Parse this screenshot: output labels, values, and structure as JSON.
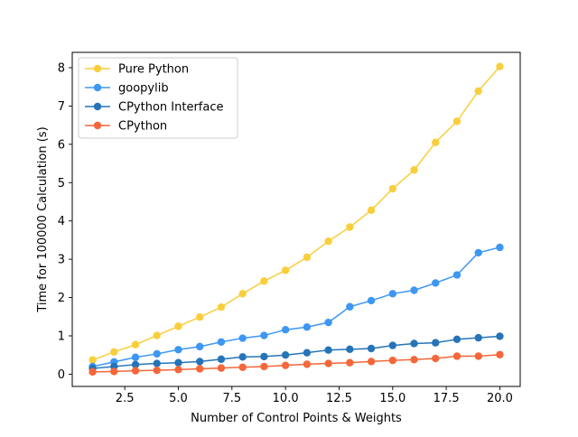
{
  "chart_data": {
    "type": "line",
    "title": "",
    "xlabel": "Number of Control Points & Weights",
    "ylabel": "Time for 100000 Calculation (s)",
    "xlim": [
      0.05,
      20.95
    ],
    "ylim": [
      -0.32,
      8.4
    ],
    "xticks": [
      2.5,
      5.0,
      7.5,
      10.0,
      12.5,
      15.0,
      17.5,
      20.0
    ],
    "xtick_labels": [
      "2.5",
      "5.0",
      "7.5",
      "10.0",
      "12.5",
      "15.0",
      "17.5",
      "20.0"
    ],
    "yticks": [
      0,
      1,
      2,
      3,
      4,
      5,
      6,
      7,
      8
    ],
    "ytick_labels": [
      "0",
      "1",
      "2",
      "3",
      "4",
      "5",
      "6",
      "7",
      "8"
    ],
    "grid": false,
    "legend_position": "upper-left",
    "x": [
      1,
      2,
      3,
      4,
      5,
      6,
      7,
      8,
      9,
      10,
      11,
      12,
      13,
      14,
      15,
      16,
      17,
      18,
      19,
      20
    ],
    "series": [
      {
        "name": "Pure Python",
        "color": "#F9CE3D",
        "values": [
          0.37,
          0.58,
          0.77,
          1.01,
          1.25,
          1.49,
          1.75,
          2.1,
          2.43,
          2.71,
          3.05,
          3.47,
          3.84,
          4.28,
          4.84,
          5.33,
          6.05,
          6.6,
          7.39,
          8.03
        ]
      },
      {
        "name": "goopylib",
        "color": "#3D97F3",
        "values": [
          0.2,
          0.32,
          0.44,
          0.53,
          0.64,
          0.72,
          0.84,
          0.94,
          1.01,
          1.16,
          1.23,
          1.35,
          1.76,
          1.92,
          2.1,
          2.19,
          2.38,
          2.59,
          3.17,
          3.31
        ]
      },
      {
        "name": "CPython Interface",
        "color": "#2574B8",
        "values": [
          0.15,
          0.2,
          0.25,
          0.28,
          0.3,
          0.33,
          0.39,
          0.45,
          0.46,
          0.5,
          0.56,
          0.63,
          0.65,
          0.67,
          0.75,
          0.8,
          0.82,
          0.91,
          0.95,
          0.99
        ]
      },
      {
        "name": "CPython",
        "color": "#F5673A",
        "values": [
          0.06,
          0.07,
          0.09,
          0.1,
          0.12,
          0.14,
          0.16,
          0.18,
          0.2,
          0.23,
          0.26,
          0.28,
          0.3,
          0.33,
          0.36,
          0.38,
          0.41,
          0.47,
          0.47,
          0.51
        ]
      }
    ]
  }
}
